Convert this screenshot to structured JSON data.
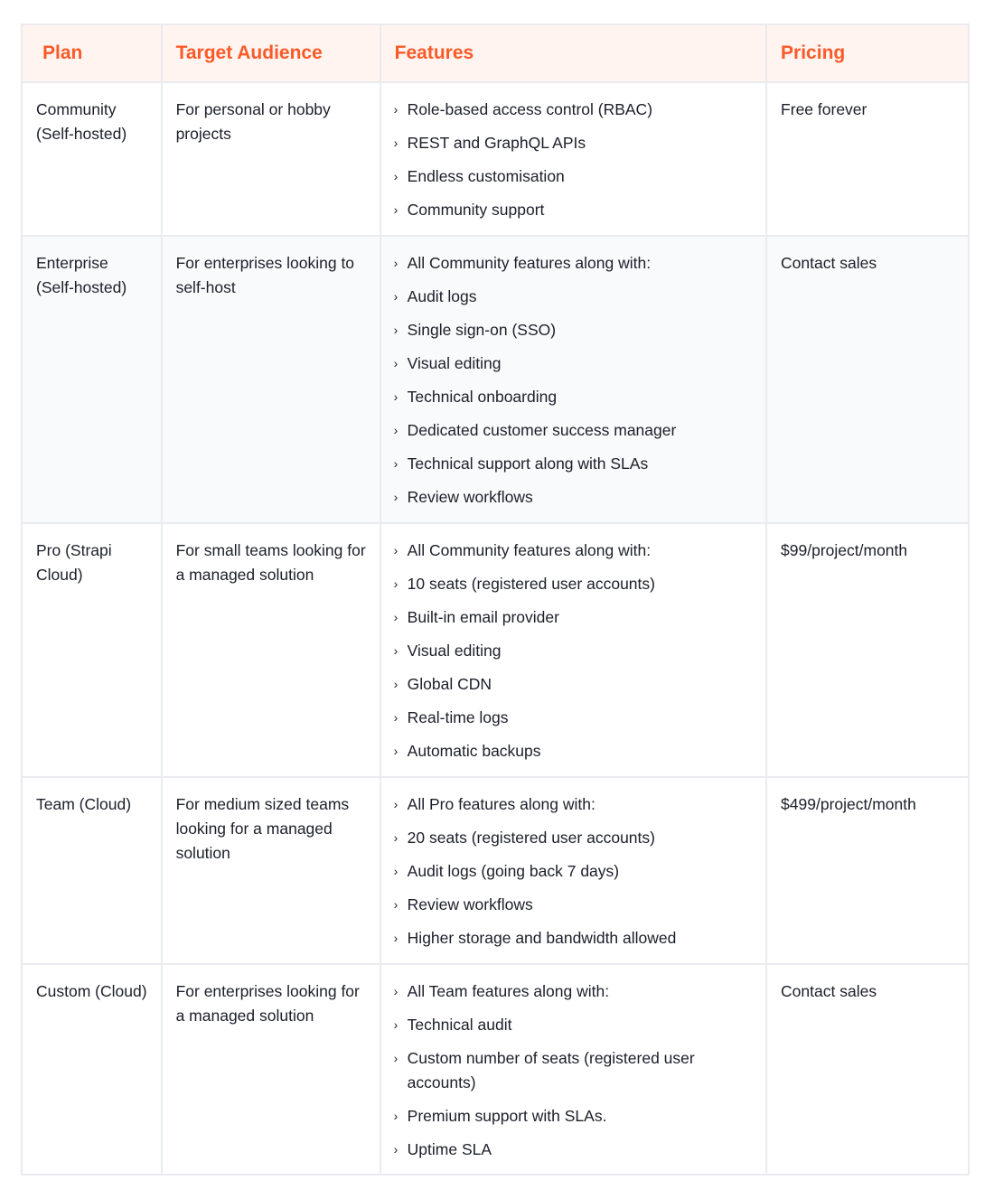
{
  "colors": {
    "accent": "#fb5a28",
    "header_bg": "#fff4ef",
    "border": "#e9ebef"
  },
  "headers": [
    "Plan",
    "Target Audience",
    "Features",
    "Pricing"
  ],
  "rows": [
    {
      "plan": "Community (Self-hosted)",
      "audience": "For personal or hobby projects",
      "features": [
        "Role-based access control (RBAC)",
        "REST and GraphQL APIs",
        "Endless customisation",
        "Community support"
      ],
      "pricing": "Free forever"
    },
    {
      "plan": "Enterprise (Self-hosted)",
      "audience": "For enterprises looking to self-host",
      "features": [
        "All Community features along with:",
        "Audit logs",
        "Single sign-on (SSO)",
        "Visual editing",
        "Technical onboarding",
        "Dedicated customer success manager",
        "Technical support along with SLAs",
        "Review workflows"
      ],
      "pricing": "Contact sales"
    },
    {
      "plan": "Pro (Strapi Cloud)",
      "audience": "For small teams looking for a managed solution",
      "features": [
        "All Community features along with:",
        "10 seats (registered user accounts)",
        "Built-in email provider",
        "Visual editing",
        "Global CDN",
        "Real-time logs",
        "Automatic backups"
      ],
      "pricing": "$99/project/month"
    },
    {
      "plan": "Team (Cloud)",
      "audience": "For medium sized teams looking for a managed solution",
      "features": [
        "All Pro features along with:",
        "20 seats (registered user accounts)",
        "Audit logs (going back 7 days)",
        "Review workflows",
        "Higher storage and bandwidth allowed"
      ],
      "pricing": "$499/project/month"
    },
    {
      "plan": "Custom (Cloud)",
      "audience": "For enterprises looking for a managed solution",
      "features": [
        "All Team features along with:",
        "Technical audit",
        "Custom number of seats (registered user accounts)",
        "Premium support with SLAs.",
        "Uptime SLA"
      ],
      "pricing": "Contact sales"
    }
  ]
}
